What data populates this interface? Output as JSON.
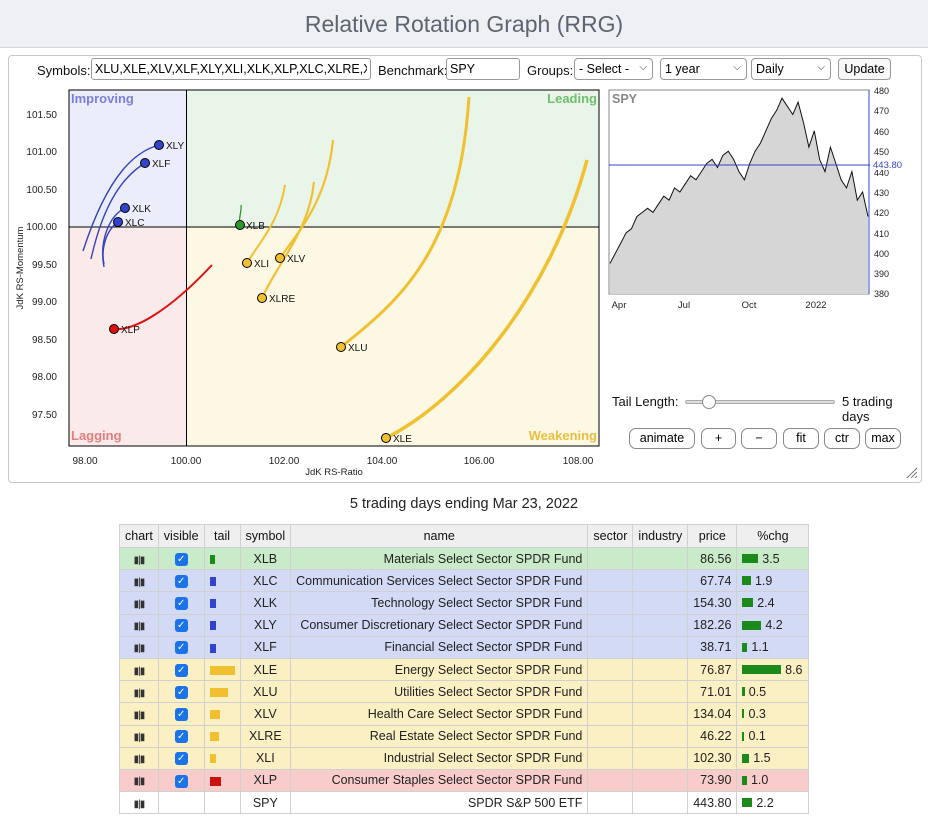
{
  "title": "Relative Rotation Graph (RRG)",
  "controls": {
    "symbols_label": "Symbols:",
    "symbols_value": "XLU,XLE,XLV,XLF,XLY,XLI,XLK,XLP,XLC,XLRE,XLB",
    "benchmark_label": "Benchmark:",
    "benchmark_value": "SPY",
    "groups_label": "Groups:",
    "groups_value": "- Select -",
    "period_value": "1 year",
    "frequency_value": "Daily",
    "update_label": "Update"
  },
  "rrg": {
    "quadrants": {
      "improving": "Improving",
      "leading": "Leading",
      "lagging": "Lagging",
      "weakening": "Weakening"
    },
    "x_axis_label": "JdK RS-Ratio",
    "y_axis_label": "JdK RS-Momentum",
    "x_ticks": [
      "98.00",
      "100.00",
      "102.00",
      "104.00",
      "106.00",
      "108.00"
    ],
    "y_ticks": [
      "101.50",
      "101.00",
      "100.50",
      "100.00",
      "99.50",
      "99.00",
      "98.50",
      "98.00",
      "97.50"
    ]
  },
  "spy_chart": {
    "label": "SPY",
    "y_ticks": [
      "480",
      "470",
      "460",
      "450",
      "440",
      "430",
      "420",
      "410",
      "400",
      "390",
      "380"
    ],
    "x_ticks": [
      "Apr",
      "Jul",
      "Oct",
      "2022"
    ],
    "current_value": "443.80"
  },
  "tail": {
    "label": "Tail Length:",
    "value_text": "5 trading days",
    "value_fraction": 0.15
  },
  "buttons": {
    "animate": "animate",
    "plus": "+",
    "minus": "−",
    "fit": "fit",
    "ctr": "ctr",
    "max": "max"
  },
  "caption": "5 trading days ending Mar 23, 2022",
  "table": {
    "headers": [
      "chart",
      "visible",
      "tail",
      "symbol",
      "name",
      "sector",
      "industry",
      "price",
      "%chg"
    ],
    "rows": [
      {
        "symbol": "XLB",
        "name": "Materials Select Sector SPDR Fund",
        "price": "86.56",
        "chg": "3.5",
        "bg": "#c9ebc9",
        "tail_color": "#1b8a1b",
        "tail_w": 5
      },
      {
        "symbol": "XLC",
        "name": "Communication Services Select Sector SPDR Fund",
        "price": "67.74",
        "chg": "1.9",
        "bg": "#d3daf5",
        "tail_color": "#3344cc",
        "tail_w": 6
      },
      {
        "symbol": "XLK",
        "name": "Technology Select Sector SPDR Fund",
        "price": "154.30",
        "chg": "2.4",
        "bg": "#d3daf5",
        "tail_color": "#3344cc",
        "tail_w": 6
      },
      {
        "symbol": "XLY",
        "name": "Consumer Discretionary Select Sector SPDR Fund",
        "price": "182.26",
        "chg": "4.2",
        "bg": "#d3daf5",
        "tail_color": "#3344cc",
        "tail_w": 6
      },
      {
        "symbol": "XLF",
        "name": "Financial Select Sector SPDR Fund",
        "price": "38.71",
        "chg": "1.1",
        "bg": "#d3daf5",
        "tail_color": "#3344cc",
        "tail_w": 6
      },
      {
        "symbol": "XLE",
        "name": "Energy Select Sector SPDR Fund",
        "price": "76.87",
        "chg": "8.6",
        "bg": "#fbefc4",
        "tail_color": "#f0c030",
        "tail_w": 25
      },
      {
        "symbol": "XLU",
        "name": "Utilities Select Sector SPDR Fund",
        "price": "71.01",
        "chg": "0.5",
        "bg": "#fbefc4",
        "tail_color": "#f0c030",
        "tail_w": 18
      },
      {
        "symbol": "XLV",
        "name": "Health Care Select Sector SPDR Fund",
        "price": "134.04",
        "chg": "0.3",
        "bg": "#fbefc4",
        "tail_color": "#f0c030",
        "tail_w": 10
      },
      {
        "symbol": "XLRE",
        "name": "Real Estate Select Sector SPDR Fund",
        "price": "46.22",
        "chg": "0.1",
        "bg": "#fbefc4",
        "tail_color": "#f0c030",
        "tail_w": 9
      },
      {
        "symbol": "XLI",
        "name": "Industrial Select Sector SPDR Fund",
        "price": "102.30",
        "chg": "1.5",
        "bg": "#fbefc4",
        "tail_color": "#f0c030",
        "tail_w": 6
      },
      {
        "symbol": "XLP",
        "name": "Consumer Staples Select Sector SPDR Fund",
        "price": "73.90",
        "chg": "1.0",
        "bg": "#f9cccc",
        "tail_color": "#cc1111",
        "tail_w": 11
      },
      {
        "symbol": "SPY",
        "name": "SPDR S&P 500 ETF",
        "price": "443.80",
        "chg": "2.2",
        "bg": "#ffffff",
        "tail_color": "",
        "tail_w": 0
      }
    ]
  }
}
